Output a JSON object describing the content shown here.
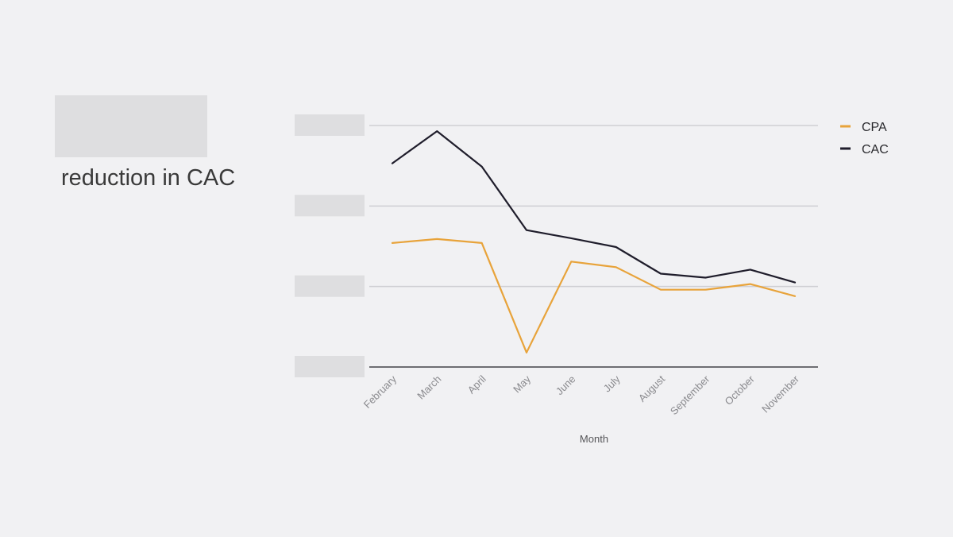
{
  "headline": {
    "caption": "reduction in CAC"
  },
  "colors": {
    "background": "#f1f1f3",
    "placeholder": "#dedee0",
    "grid": "#cfcfd3",
    "axis": "#6e6e72",
    "cpa": "#e8a33a",
    "cac": "#1f1d2b"
  },
  "chart_data": {
    "type": "line",
    "xlabel": "Month",
    "ylabel": "",
    "categories": [
      "February",
      "March",
      "April",
      "May",
      "June",
      "July",
      "August",
      "September",
      "October",
      "November"
    ],
    "ylim": [
      0,
      3
    ],
    "y_ticks": [
      0,
      1,
      2,
      3
    ],
    "y_tick_labels_redacted": true,
    "grid": true,
    "legend_position": "top-right",
    "series": [
      {
        "name": "CPA",
        "color": "#e8a33a",
        "values": [
          1.54,
          1.59,
          1.54,
          0.18,
          1.31,
          1.24,
          0.96,
          0.96,
          1.03,
          0.88
        ]
      },
      {
        "name": "CAC",
        "color": "#1f1d2b",
        "values": [
          2.53,
          2.93,
          2.49,
          1.7,
          1.6,
          1.49,
          1.16,
          1.11,
          1.21,
          1.05
        ]
      }
    ]
  }
}
